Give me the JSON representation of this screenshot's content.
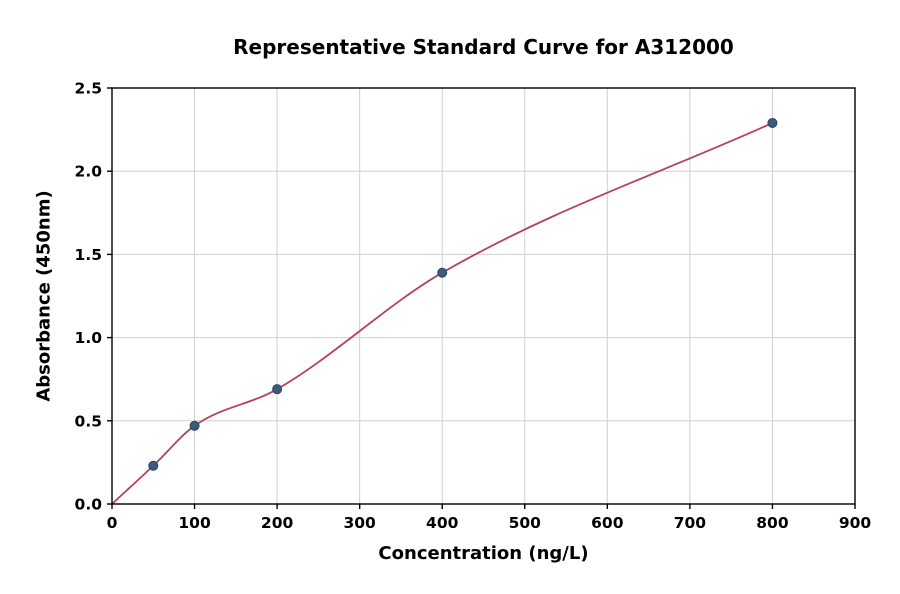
{
  "chart_data": {
    "type": "scatter",
    "title": "Representative Standard Curve for A312000",
    "xlabel": "Concentration (ng/L)",
    "ylabel": "Absorbance (450nm)",
    "xlim": [
      0,
      900
    ],
    "ylim": [
      0,
      2.5
    ],
    "grid": true,
    "legend": "none",
    "x_ticks": {
      "values": [
        0,
        100,
        200,
        300,
        400,
        500,
        600,
        700,
        800,
        900
      ],
      "labels": [
        "0",
        "100",
        "200",
        "300",
        "400",
        "500",
        "600",
        "700",
        "800",
        "900"
      ]
    },
    "y_ticks": {
      "values": [
        0,
        0.5,
        1.0,
        1.5,
        2.0,
        2.5
      ],
      "labels": [
        "0.0",
        "0.5",
        "1.0",
        "1.5",
        "2.0",
        "2.5"
      ]
    },
    "points": {
      "x": [
        50,
        100,
        200,
        400,
        800
      ],
      "y": [
        0.23,
        0.47,
        0.69,
        1.39,
        2.29
      ]
    },
    "curve": {
      "x": [
        0,
        50,
        100,
        200,
        400,
        800
      ],
      "y": [
        0.0,
        0.23,
        0.47,
        0.69,
        1.39,
        2.29
      ]
    },
    "colors": {
      "point": "#3b5a80",
      "point_edge": "#2d4563",
      "curve": "#b5405f",
      "grid": "#cfcfcf",
      "axis": "#000000",
      "background": "#ffffff"
    }
  }
}
